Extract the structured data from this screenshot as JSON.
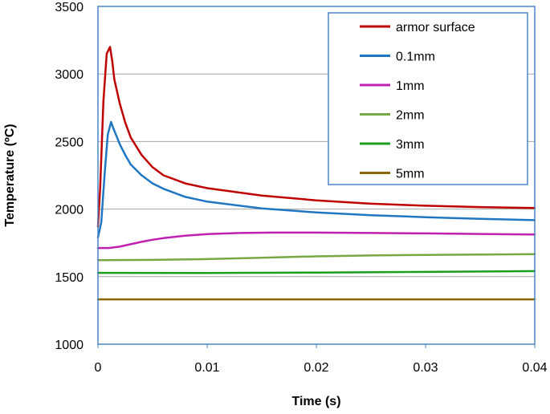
{
  "chart_data": {
    "type": "line",
    "title": "",
    "xlabel": "Time (s)",
    "ylabel": "Temperature (ºC)",
    "xlim": [
      0,
      0.04
    ],
    "ylim": [
      1000,
      3500
    ],
    "xticks": [
      0,
      0.01,
      0.02,
      0.03,
      0.04
    ],
    "xtick_labels": [
      "0",
      "0.01",
      "0.02",
      "0.03",
      "0.04"
    ],
    "yticks": [
      1000,
      1500,
      2000,
      2500,
      3000,
      3500
    ],
    "ytick_labels": [
      "1000",
      "1500",
      "2000",
      "2500",
      "3000",
      "3500"
    ],
    "grid": "horizontal",
    "legend_position": "top-right",
    "series": [
      {
        "name": "armor surface",
        "color": "#c00000",
        "points": [
          [
            0,
            1870
          ],
          [
            0.0002,
            2150
          ],
          [
            0.0005,
            2800
          ],
          [
            0.0008,
            3150
          ],
          [
            0.0011,
            3200
          ],
          [
            0.0013,
            3100
          ],
          [
            0.0015,
            2960
          ],
          [
            0.002,
            2780
          ],
          [
            0.0025,
            2640
          ],
          [
            0.003,
            2530
          ],
          [
            0.004,
            2400
          ],
          [
            0.005,
            2310
          ],
          [
            0.006,
            2250
          ],
          [
            0.008,
            2190
          ],
          [
            0.01,
            2155
          ],
          [
            0.015,
            2100
          ],
          [
            0.02,
            2065
          ],
          [
            0.025,
            2040
          ],
          [
            0.03,
            2025
          ],
          [
            0.035,
            2015
          ],
          [
            0.04,
            2008
          ]
        ]
      },
      {
        "name": "0.1mm",
        "color": "#1f77c4",
        "points": [
          [
            0,
            1790
          ],
          [
            0.0003,
            1900
          ],
          [
            0.0006,
            2250
          ],
          [
            0.0009,
            2550
          ],
          [
            0.0012,
            2645
          ],
          [
            0.0014,
            2600
          ],
          [
            0.0016,
            2560
          ],
          [
            0.002,
            2480
          ],
          [
            0.0025,
            2400
          ],
          [
            0.003,
            2330
          ],
          [
            0.004,
            2250
          ],
          [
            0.005,
            2190
          ],
          [
            0.006,
            2150
          ],
          [
            0.008,
            2090
          ],
          [
            0.01,
            2055
          ],
          [
            0.015,
            2005
          ],
          [
            0.02,
            1975
          ],
          [
            0.025,
            1955
          ],
          [
            0.03,
            1940
          ],
          [
            0.035,
            1928
          ],
          [
            0.04,
            1918
          ]
        ]
      },
      {
        "name": "1mm",
        "color": "#c020b0",
        "points": [
          [
            0,
            1712
          ],
          [
            0.001,
            1712
          ],
          [
            0.002,
            1722
          ],
          [
            0.003,
            1740
          ],
          [
            0.004,
            1758
          ],
          [
            0.005,
            1773
          ],
          [
            0.006,
            1785
          ],
          [
            0.008,
            1803
          ],
          [
            0.01,
            1815
          ],
          [
            0.013,
            1823
          ],
          [
            0.016,
            1826
          ],
          [
            0.02,
            1826
          ],
          [
            0.025,
            1823
          ],
          [
            0.03,
            1820
          ],
          [
            0.035,
            1816
          ],
          [
            0.04,
            1812
          ]
        ]
      },
      {
        "name": "2mm",
        "color": "#77a843",
        "points": [
          [
            0,
            1622
          ],
          [
            0.005,
            1624
          ],
          [
            0.01,
            1630
          ],
          [
            0.015,
            1640
          ],
          [
            0.02,
            1650
          ],
          [
            0.025,
            1657
          ],
          [
            0.03,
            1661
          ],
          [
            0.035,
            1664
          ],
          [
            0.04,
            1666
          ]
        ]
      },
      {
        "name": "3mm",
        "color": "#1e9e1e",
        "points": [
          [
            0,
            1528
          ],
          [
            0.01,
            1527
          ],
          [
            0.02,
            1530
          ],
          [
            0.03,
            1535
          ],
          [
            0.04,
            1541
          ]
        ]
      },
      {
        "name": "5mm",
        "color": "#8b6508",
        "points": [
          [
            0,
            1332
          ],
          [
            0.04,
            1332
          ]
        ]
      }
    ]
  }
}
